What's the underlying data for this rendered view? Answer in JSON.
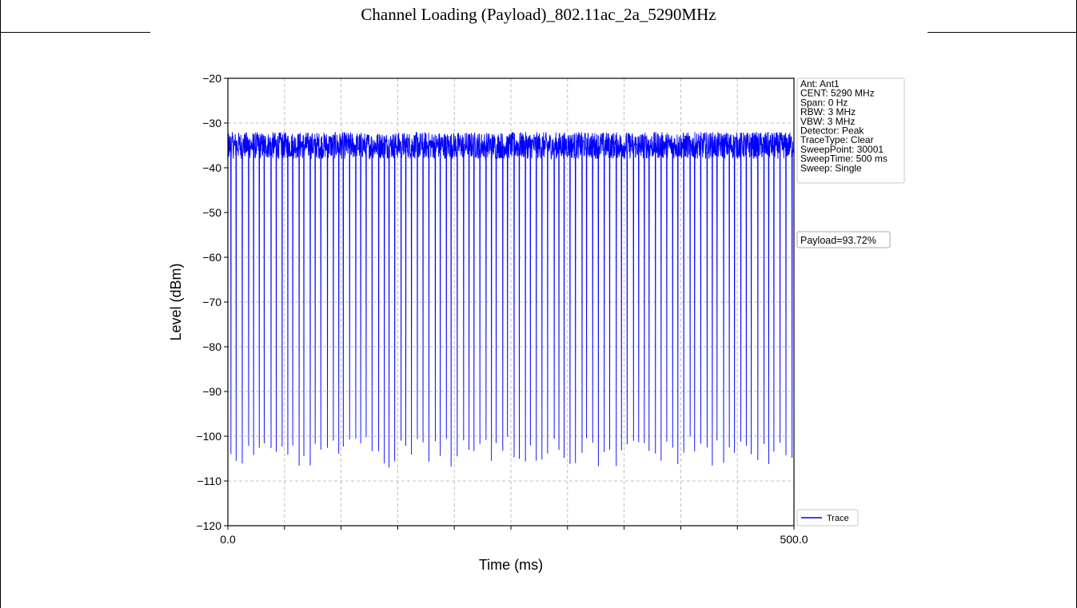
{
  "page": {
    "title": "Channel Loading (Payload)_802.11ac_2a_5290MHz"
  },
  "chart_data": {
    "type": "line",
    "xlabel": "Time (ms)",
    "ylabel": "Level (dBm)",
    "xlim": [
      0,
      500
    ],
    "ylim": [
      -120,
      -20
    ],
    "x_ticks": [
      0,
      500
    ],
    "x_tick_labels": [
      "0.0",
      "500.0"
    ],
    "y_ticks": [
      -20,
      -30,
      -40,
      -50,
      -60,
      -70,
      -80,
      -90,
      -100,
      -110,
      -120
    ],
    "y_tick_labels": [
      "−20",
      "−30",
      "−40",
      "−50",
      "−60",
      "−70",
      "−80",
      "−90",
      "−100",
      "−110",
      "−120"
    ],
    "grid": true,
    "series": [
      {
        "name": "Trace",
        "color": "#0000ff",
        "description_values": {
          "on_level_range_dbm": [
            -38,
            -32
          ],
          "off_level_range_dbm": [
            -107,
            -100
          ],
          "gap_count": 100
        }
      }
    ],
    "info_box": [
      "Ant: Ant1",
      "CENT: 5290 MHz",
      "Span: 0 Hz",
      "RBW: 3 MHz",
      "VBW: 3 MHz",
      "Detector: Peak",
      "TraceType: Clear",
      "SweepPoint: 30001",
      "SweepTime: 500 ms",
      "Sweep: Single"
    ],
    "annotation": "Payload=93.72%",
    "legend_placement": "bottom-right outside plot",
    "legend_label": "Trace"
  }
}
